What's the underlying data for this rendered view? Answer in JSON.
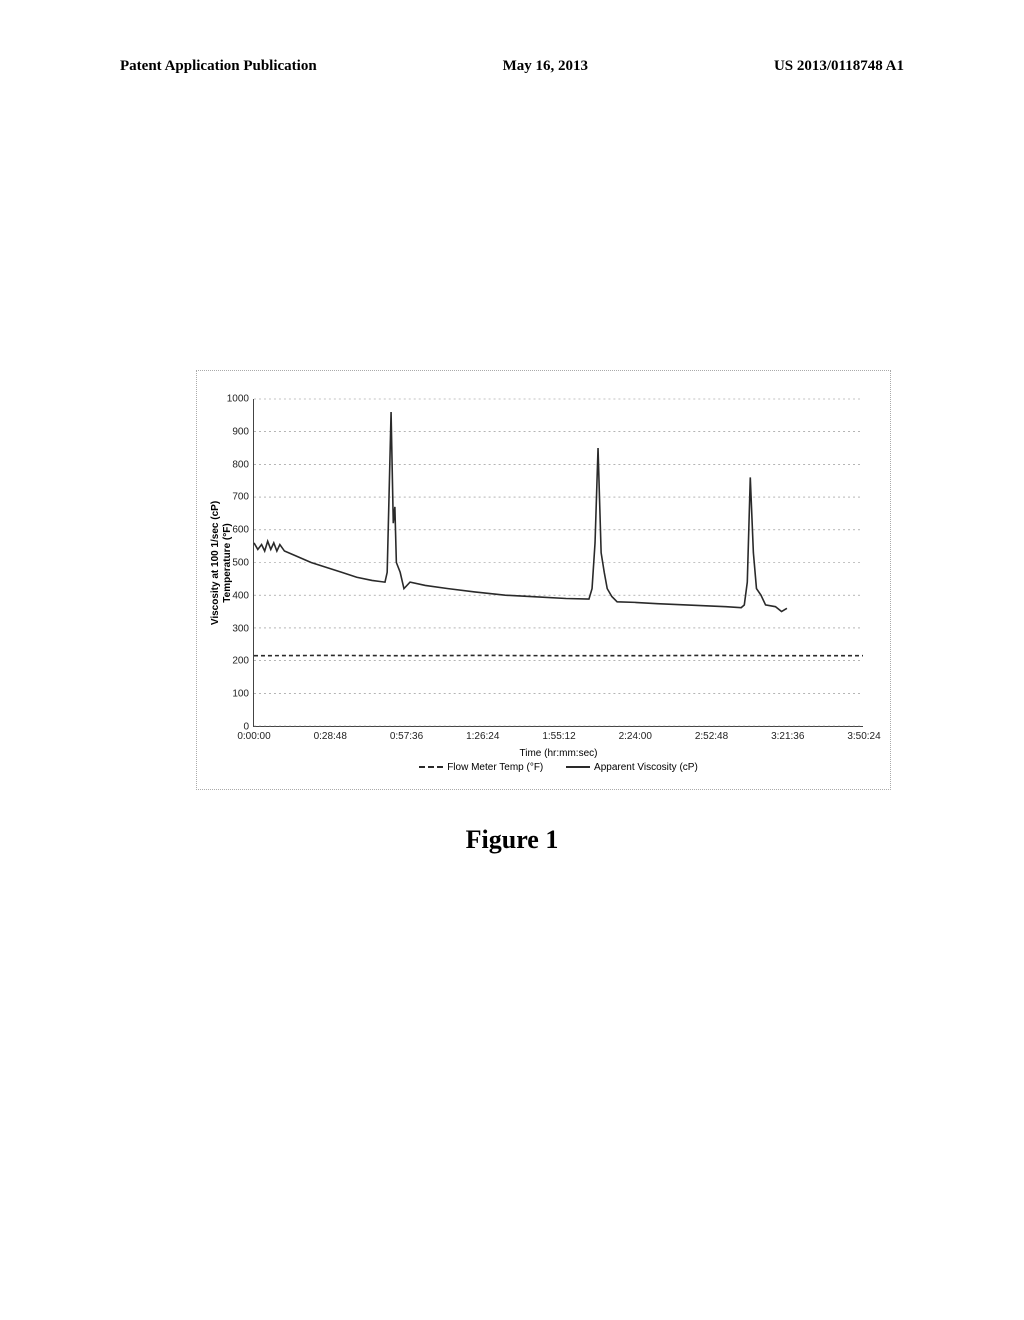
{
  "header": {
    "left": "Patent Application Publication",
    "center": "May 16, 2013",
    "right": "US 2013/0118748 A1"
  },
  "figure_caption": "Figure 1",
  "chart": {
    "type": "line",
    "ylabel_line1": "Viscosity at 100 1/sec (cP)",
    "ylabel_line2": "Temperature (°F)",
    "xlabel": "Time (hr:mm:sec)",
    "ylim": [
      0,
      1000
    ],
    "yticks": [
      0,
      100,
      200,
      300,
      400,
      500,
      600,
      700,
      800,
      900,
      1000
    ],
    "xticks": [
      "0:00:00",
      "0:28:48",
      "0:57:36",
      "1:26:24",
      "1:55:12",
      "2:24:00",
      "2:52:48",
      "3:21:36",
      "3:50:24"
    ],
    "grid_color": "#888888",
    "axis_color": "#444444",
    "background_color": "#ffffff",
    "legend": [
      {
        "label": "Flow Meter Temp (°F)",
        "dash": "4,3",
        "color": "#2a2a2a"
      },
      {
        "label": "Apparent Viscosity (cP)",
        "dash": "",
        "color": "#2a2a2a"
      }
    ],
    "series_temp": {
      "color": "#2a2a2a",
      "width": 1.6,
      "dash": "4,3",
      "points": [
        [
          0,
          215
        ],
        [
          1,
          216
        ],
        [
          2,
          215
        ],
        [
          3,
          216
        ],
        [
          4,
          215
        ],
        [
          5,
          215
        ],
        [
          6,
          216
        ],
        [
          7,
          215
        ],
        [
          8,
          215
        ]
      ]
    },
    "series_visc": {
      "color": "#2a2a2a",
      "width": 1.6,
      "dash": "",
      "points": [
        [
          0.0,
          560
        ],
        [
          0.05,
          540
        ],
        [
          0.1,
          555
        ],
        [
          0.14,
          535
        ],
        [
          0.18,
          565
        ],
        [
          0.22,
          540
        ],
        [
          0.26,
          560
        ],
        [
          0.3,
          535
        ],
        [
          0.34,
          555
        ],
        [
          0.4,
          535
        ],
        [
          0.55,
          520
        ],
        [
          0.75,
          500
        ],
        [
          0.95,
          485
        ],
        [
          1.15,
          470
        ],
        [
          1.35,
          455
        ],
        [
          1.55,
          445
        ],
        [
          1.72,
          440
        ],
        [
          1.75,
          470
        ],
        [
          1.8,
          960
        ],
        [
          1.83,
          620
        ],
        [
          1.85,
          670
        ],
        [
          1.87,
          500
        ],
        [
          1.92,
          470
        ],
        [
          1.97,
          420
        ],
        [
          2.05,
          440
        ],
        [
          2.25,
          430
        ],
        [
          2.55,
          420
        ],
        [
          2.9,
          410
        ],
        [
          3.3,
          400
        ],
        [
          3.7,
          395
        ],
        [
          4.1,
          390
        ],
        [
          4.4,
          388
        ],
        [
          4.44,
          420
        ],
        [
          4.48,
          560
        ],
        [
          4.52,
          850
        ],
        [
          4.56,
          530
        ],
        [
          4.6,
          470
        ],
        [
          4.64,
          420
        ],
        [
          4.7,
          396
        ],
        [
          4.77,
          380
        ],
        [
          5.0,
          378
        ],
        [
          5.3,
          374
        ],
        [
          5.6,
          371
        ],
        [
          5.9,
          368
        ],
        [
          6.2,
          365
        ],
        [
          6.4,
          362
        ],
        [
          6.44,
          370
        ],
        [
          6.48,
          440
        ],
        [
          6.52,
          760
        ],
        [
          6.56,
          530
        ],
        [
          6.6,
          420
        ],
        [
          6.66,
          400
        ],
        [
          6.72,
          370
        ],
        [
          6.85,
          365
        ],
        [
          6.93,
          350
        ],
        [
          7.0,
          360
        ]
      ]
    }
  }
}
